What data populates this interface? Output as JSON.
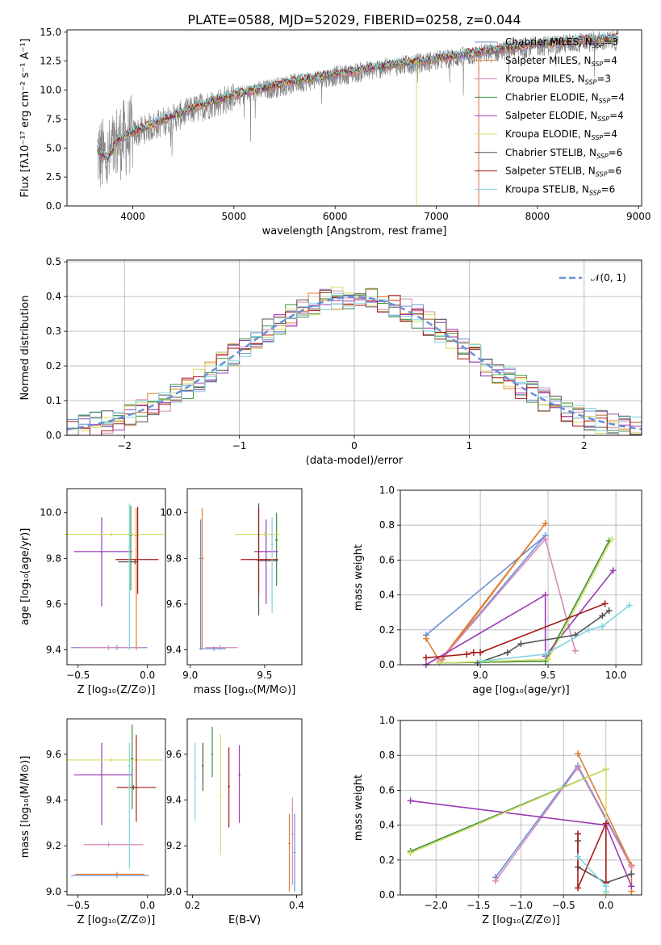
{
  "figure_title": "PLATE=0588, MJD=52029, FIBERID=0258, z=0.044",
  "colors": [
    "#6a8fd4",
    "#e07d2e",
    "#d98ab9",
    "#3f8f3a",
    "#9b3cb4",
    "#d2df6a",
    "#555555",
    "#a61a1a",
    "#82d4dd"
  ],
  "chart_data": [
    {
      "id": "spectrum",
      "type": "line",
      "xlabel": "wavelength [Angstrom, rest frame]",
      "ylabel": "Flux [fλ10⁻¹⁷ erg cm⁻² s⁻¹ A⁻¹]",
      "xlim": [
        3350,
        9030
      ],
      "ylim": [
        0,
        15.2
      ],
      "xticks": [
        4000,
        5000,
        6000,
        7000,
        8000,
        9000
      ],
      "yticks": [
        0.0,
        2.5,
        5.0,
        7.5,
        10.0,
        12.5,
        15.0
      ],
      "ytick_labels": [
        "0.0",
        "2.5",
        "5.0",
        "7.5",
        "10.0",
        "12.5",
        "15.0"
      ],
      "legend_placement": "upper right",
      "data_series": {
        "name": "",
        "color": "#808080"
      },
      "continuum_x": [
        3650,
        3750,
        3850,
        4000,
        4200,
        4400,
        4600,
        4800,
        5000,
        5300,
        5600,
        6000,
        6400,
        6800,
        7200,
        7600,
        8000,
        8400,
        8800
      ],
      "continuum_y": [
        4.6,
        3.9,
        5.5,
        6.2,
        6.9,
        7.6,
        8.3,
        8.9,
        9.4,
        10.0,
        10.6,
        11.2,
        11.8,
        12.3,
        12.8,
        13.3,
        13.8,
        14.1,
        14.3
      ],
      "series": [
        {
          "name": "Chabrier MILES, N_SSP=3"
        },
        {
          "name": "Salpeter MILES, N_SSP=4"
        },
        {
          "name": "Kroupa MILES, N_SSP=3"
        },
        {
          "name": "Chabrier ELODIE, N_SSP=4"
        },
        {
          "name": "Salpeter ELODIE, N_SSP=4"
        },
        {
          "name": "Kroupa ELODIE, N_SSP=4"
        },
        {
          "name": "Chabrier STELIB, N_SSP=6"
        },
        {
          "name": "Salpeter STELIB, N_SSP=6"
        },
        {
          "name": "Kroupa STELIB, N_SSP=6"
        }
      ]
    },
    {
      "id": "residuals",
      "type": "histogram",
      "xlabel": "(data-model)/error",
      "ylabel": "Normed distribution",
      "xlim": [
        -2.5,
        2.5
      ],
      "ylim": [
        0,
        0.505
      ],
      "xticks": [
        -2,
        -1,
        0,
        1,
        2
      ],
      "xtick_labels": [
        "−2",
        "−1",
        "0",
        "1",
        "2"
      ],
      "yticks": [
        0.0,
        0.1,
        0.2,
        0.3,
        0.4,
        0.5
      ],
      "ytick_labels": [
        "0.0",
        "0.1",
        "0.2",
        "0.3",
        "0.4",
        "0.5"
      ],
      "grid": true,
      "legend": {
        "name": "𝒩(0, 1)",
        "style": "dashed",
        "color": "#6a8fd4",
        "placement": "upper right"
      },
      "bin_width": 0.1
    },
    {
      "id": "age-vs-Z",
      "type": "errorbar",
      "xlabel": "Z [log₁₀(Z/Z⊙)]",
      "ylabel": "age  [log₁₀(age/yr)]",
      "xlim": [
        -0.58,
        0.13
      ],
      "ylim": [
        9.335,
        10.105
      ],
      "xticks": [
        -0.5,
        0.0
      ],
      "xtick_labels": [
        "−0.5",
        "0.0"
      ],
      "yticks": [
        9.4,
        9.6,
        9.8,
        10.0
      ],
      "ytick_labels": [
        "9.4",
        "9.6",
        "9.8",
        "10.0"
      ],
      "points": [
        {
          "x": -0.22,
          "xerr": [
            0.33,
            0.22
          ],
          "y": 9.41,
          "yerr": [
            0.01,
            0.01
          ],
          "c": 0
        },
        {
          "x": -0.08,
          "xerr": [
            0.01,
            0.01
          ],
          "y": 9.9,
          "yerr": [
            0.5,
            0.12
          ],
          "c": 1
        },
        {
          "x": -0.28,
          "xerr": [
            0.22,
            0.25
          ],
          "y": 9.41,
          "yerr": [
            0.01,
            0.01
          ],
          "c": 2
        },
        {
          "x": -0.12,
          "xerr": [
            0.01,
            0.01
          ],
          "y": 9.9,
          "yerr": [
            0.24,
            0.13
          ],
          "c": 3
        },
        {
          "x": -0.33,
          "xerr": [
            0.2,
            0.22
          ],
          "y": 9.83,
          "yerr": [
            0.24,
            0.15
          ],
          "c": 4
        },
        {
          "x": -0.26,
          "xerr": [
            0.34,
            0.38
          ],
          "y": 9.905,
          "yerr": [
            0.01,
            0.01
          ],
          "c": 5
        },
        {
          "x": -0.09,
          "xerr": [
            0.12,
            0.02
          ],
          "y": 9.785,
          "yerr": [
            0.01,
            0.01
          ],
          "c": 6
        },
        {
          "x": -0.07,
          "xerr": [
            0.16,
            0.15
          ],
          "y": 9.795,
          "yerr": [
            0.15,
            0.23
          ],
          "c": 7
        },
        {
          "x": -0.13,
          "xerr": [
            0.01,
            0.01
          ],
          "y": 9.85,
          "yerr": [
            0.45,
            0.19
          ],
          "c": 8
        }
      ]
    },
    {
      "id": "age-vs-mass",
      "type": "errorbar",
      "xlabel": "mass [log₁₀(M/M⊙)]",
      "ylabel": "",
      "xlim": [
        8.98,
        9.75
      ],
      "ylim": [
        9.335,
        10.105
      ],
      "xticks": [
        9.0,
        9.5
      ],
      "xtick_labels": [
        "9.0",
        "9.5"
      ],
      "yticks": [
        9.4,
        9.6,
        9.8,
        10.0
      ],
      "ytick_labels": [
        "9.4",
        "9.6",
        "9.8",
        "10.0"
      ],
      "points": [
        {
          "x": 9.07,
          "xerr": [
            0.01,
            0.01
          ],
          "y": 9.8,
          "yerr": [
            0.4,
            0.17
          ],
          "c": 0
        },
        {
          "x": 9.08,
          "xerr": [
            0.01,
            0.01
          ],
          "y": 9.8,
          "yerr": [
            0.4,
            0.22
          ],
          "c": 1
        },
        {
          "x": 9.2,
          "xerr": [
            0.1,
            0.12
          ],
          "y": 9.41,
          "yerr": [
            0.01,
            0.01
          ],
          "c": 2
        },
        {
          "x": 9.58,
          "xerr": [
            0.01,
            0.01
          ],
          "y": 9.88,
          "yerr": [
            0.2,
            0.12
          ],
          "c": 3
        },
        {
          "x": 9.51,
          "xerr": [
            0.08,
            0.08
          ],
          "y": 9.83,
          "yerr": [
            0.23,
            0.14
          ],
          "c": 4
        },
        {
          "x": 9.5,
          "xerr": [
            0.2,
            0.1
          ],
          "y": 9.905,
          "yerr": [
            0.01,
            0.01
          ],
          "c": 5
        },
        {
          "x": 9.46,
          "xerr": [
            0.01,
            0.13
          ],
          "y": 9.79,
          "yerr": [
            0.24,
            0.25
          ],
          "c": 6
        },
        {
          "x": 9.46,
          "xerr": [
            0.12,
            0.13
          ],
          "y": 9.795,
          "yerr": [
            0.15,
            0.23
          ],
          "c": 7
        },
        {
          "x": 9.55,
          "xerr": [
            0.01,
            0.01
          ],
          "y": 9.86,
          "yerr": [
            0.3,
            0.12
          ],
          "c": 8
        },
        {
          "x": 9.16,
          "xerr": [
            0.1,
            0.08
          ],
          "y": 9.405,
          "yerr": [
            0.01,
            0.01
          ],
          "c": 0
        }
      ]
    },
    {
      "id": "weight-vs-age",
      "type": "line",
      "xlabel": "age  [log₁₀(age/yr)]",
      "ylabel": "mass weight",
      "xlim": [
        8.41,
        10.19
      ],
      "ylim": [
        0,
        1.0
      ],
      "xticks": [
        9.0,
        9.5,
        10.0
      ],
      "xtick_labels": [
        "9.0",
        "9.5",
        "10.0"
      ],
      "yticks": [
        0.0,
        0.2,
        0.4,
        0.6,
        0.8,
        1.0
      ],
      "ytick_labels": [
        "0.0",
        "0.2",
        "0.4",
        "0.6",
        "0.8",
        "1.0"
      ],
      "grid": true,
      "series": [
        {
          "c": 0,
          "x": [
            8.6,
            9.48,
            8.7
          ],
          "y": [
            0.17,
            0.74,
            0.02
          ]
        },
        {
          "c": 1,
          "x": [
            8.6,
            8.7,
            9.48,
            8.72
          ],
          "y": [
            0.15,
            0.02,
            0.81,
            0.03
          ]
        },
        {
          "c": 2,
          "x": [
            8.7,
            9.48,
            9.7
          ],
          "y": [
            0.02,
            0.72,
            0.08
          ]
        },
        {
          "c": 3,
          "x": [
            8.7,
            9.48,
            9.95
          ],
          "y": [
            0.01,
            0.02,
            0.71
          ]
        },
        {
          "c": 4,
          "x": [
            8.6,
            9.48,
            9.48,
            9.98
          ],
          "y": [
            0.0,
            0.4,
            0.05,
            0.54
          ]
        },
        {
          "c": 5,
          "x": [
            8.7,
            9.5,
            9.97
          ],
          "y": [
            0.01,
            0.03,
            0.72
          ]
        },
        {
          "c": 6,
          "x": [
            8.98,
            9.2,
            9.3,
            9.7,
            9.9,
            9.95
          ],
          "y": [
            0.01,
            0.07,
            0.12,
            0.17,
            0.28,
            0.31
          ]
        },
        {
          "c": 7,
          "x": [
            8.6,
            8.9,
            8.95,
            9.0,
            9.92
          ],
          "y": [
            0.04,
            0.06,
            0.07,
            0.07,
            0.35
          ]
        },
        {
          "c": 8,
          "x": [
            9.0,
            9.48,
            9.8,
            9.9,
            10.1
          ],
          "y": [
            0.02,
            0.06,
            0.2,
            0.22,
            0.34
          ]
        }
      ]
    },
    {
      "id": "mass-vs-Z",
      "type": "errorbar",
      "xlabel": "Z [log₁₀(Z/Z⊙)]",
      "ylabel": "mass [log₁₀(M/M⊙)]",
      "xlim": [
        -0.58,
        0.13
      ],
      "ylim": [
        8.985,
        9.755
      ],
      "xticks": [
        -0.5,
        0.0
      ],
      "xtick_labels": [
        "−0.5",
        "0.0"
      ],
      "yticks": [
        9.0,
        9.2,
        9.4,
        9.6
      ],
      "ytick_labels": [
        "9.0",
        "9.2",
        "9.4",
        "9.6"
      ],
      "points": [
        {
          "x": -0.22,
          "xerr": [
            0.33,
            0.23
          ],
          "y": 9.07,
          "yerr": [
            0.01,
            0.01
          ],
          "c": 0
        },
        {
          "x": -0.22,
          "xerr": [
            0.3,
            0.2
          ],
          "y": 9.075,
          "yerr": [
            0.01,
            0.01
          ],
          "c": 1
        },
        {
          "x": -0.28,
          "xerr": [
            0.18,
            0.25
          ],
          "y": 9.205,
          "yerr": [
            0.01,
            0.01
          ],
          "c": 2
        },
        {
          "x": -0.11,
          "xerr": [
            0.01,
            0.01
          ],
          "y": 9.58,
          "yerr": [
            0.22,
            0.15
          ],
          "c": 3
        },
        {
          "x": -0.33,
          "xerr": [
            0.2,
            0.22
          ],
          "y": 9.51,
          "yerr": [
            0.22,
            0.14
          ],
          "c": 4
        },
        {
          "x": -0.26,
          "xerr": [
            0.33,
            0.37
          ],
          "y": 9.575,
          "yerr": [
            0.01,
            0.01
          ],
          "c": 5
        },
        {
          "x": -0.1,
          "xerr": [
            0.12,
            0.03
          ],
          "y": 9.455,
          "yerr": [
            0.01,
            0.01
          ],
          "c": 6
        },
        {
          "x": -0.08,
          "xerr": [
            0.14,
            0.14
          ],
          "y": 9.455,
          "yerr": [
            0.15,
            0.23
          ],
          "c": 7
        },
        {
          "x": -0.13,
          "xerr": [
            0.01,
            0.01
          ],
          "y": 9.55,
          "yerr": [
            0.45,
            0.1
          ],
          "c": 8
        }
      ]
    },
    {
      "id": "mass-vs-ebv",
      "type": "errorbar",
      "xlabel": "E(B-V)",
      "ylabel": "",
      "xlim": [
        0.19,
        0.41
      ],
      "ylim": [
        8.985,
        9.755
      ],
      "xticks": [
        0.2,
        0.4
      ],
      "xtick_labels": [
        "0.2",
        "0.4"
      ],
      "yticks": [
        9.0,
        9.2,
        9.4,
        9.6
      ],
      "ytick_labels": [
        "9.0",
        "9.2",
        "9.4",
        "9.6"
      ],
      "points": [
        {
          "x": 0.205,
          "xerr": [
            0.002,
            0.002
          ],
          "y": 9.5,
          "yerr": [
            0.19,
            0.15
          ],
          "c": 8
        },
        {
          "x": 0.22,
          "xerr": [
            0.002,
            0.002
          ],
          "y": 9.55,
          "yerr": [
            0.11,
            0.1
          ],
          "c": 6
        },
        {
          "x": 0.238,
          "xerr": [
            0.002,
            0.002
          ],
          "y": 9.6,
          "yerr": [
            0.1,
            0.12
          ],
          "c": 3
        },
        {
          "x": 0.254,
          "xerr": [
            0.002,
            0.002
          ],
          "y": 9.42,
          "yerr": [
            0.26,
            0.27
          ],
          "c": 5
        },
        {
          "x": 0.27,
          "xerr": [
            0.002,
            0.002
          ],
          "y": 9.46,
          "yerr": [
            0.18,
            0.17
          ],
          "c": 7
        },
        {
          "x": 0.29,
          "xerr": [
            0.002,
            0.002
          ],
          "y": 9.51,
          "yerr": [
            0.21,
            0.13
          ],
          "c": 4
        },
        {
          "x": 0.386,
          "xerr": [
            0.002,
            0.002
          ],
          "y": 9.21,
          "yerr": [
            0.21,
            0.13
          ],
          "c": 1
        },
        {
          "x": 0.392,
          "xerr": [
            0.002,
            0.002
          ],
          "y": 9.25,
          "yerr": [
            0.22,
            0.16
          ],
          "c": 2
        },
        {
          "x": 0.396,
          "xerr": [
            0.002,
            0.002
          ],
          "y": 9.17,
          "yerr": [
            0.17,
            0.17
          ],
          "c": 0
        }
      ]
    },
    {
      "id": "weight-vs-Z",
      "type": "line",
      "xlabel": "Z [log₁₀(Z/Z⊙)]",
      "ylabel": "mass weight",
      "xlim": [
        -2.42,
        0.42
      ],
      "ylim": [
        0,
        1.0
      ],
      "xticks": [
        -2.0,
        -1.5,
        -1.0,
        -0.5,
        0.0
      ],
      "xtick_labels": [
        "−2.0",
        "−1.5",
        "−1.0",
        "−0.5",
        "0.0"
      ],
      "yticks": [
        0.0,
        0.2,
        0.4,
        0.6,
        0.8,
        1.0
      ],
      "ytick_labels": [
        "0.0",
        "0.2",
        "0.4",
        "0.6",
        "0.8",
        "1.0"
      ],
      "grid": true,
      "series": [
        {
          "c": 0,
          "x": [
            -1.3,
            -0.33,
            0.3
          ],
          "y": [
            0.1,
            0.74,
            0.17
          ]
        },
        {
          "c": 1,
          "x": [
            -0.33,
            0.3,
            0.3
          ],
          "y": [
            0.81,
            0.17,
            0.02
          ]
        },
        {
          "c": 2,
          "x": [
            -1.3,
            -0.33,
            0.3
          ],
          "y": [
            0.08,
            0.73,
            0.16
          ]
        },
        {
          "c": 3,
          "x": [
            -2.3,
            0.0
          ],
          "y": [
            0.25,
            0.72
          ]
        },
        {
          "c": 4,
          "x": [
            -2.3,
            0.0,
            0.3
          ],
          "y": [
            0.54,
            0.4,
            0.05
          ]
        },
        {
          "c": 5,
          "x": [
            -2.3,
            0.0,
            0.0
          ],
          "y": [
            0.24,
            0.72,
            0.01
          ]
        },
        {
          "c": 6,
          "x": [
            -0.33,
            -0.33,
            0.0,
            0.3
          ],
          "y": [
            0.31,
            0.16,
            0.07,
            0.12
          ]
        },
        {
          "c": 7,
          "x": [
            -0.33,
            -0.33,
            0.0,
            0.0,
            0.0
          ],
          "y": [
            0.35,
            0.04,
            0.41,
            0.07,
            0.07
          ]
        },
        {
          "c": 8,
          "x": [
            -0.33,
            0.0,
            0.0
          ],
          "y": [
            0.22,
            0.05,
            0.02
          ]
        }
      ]
    }
  ]
}
